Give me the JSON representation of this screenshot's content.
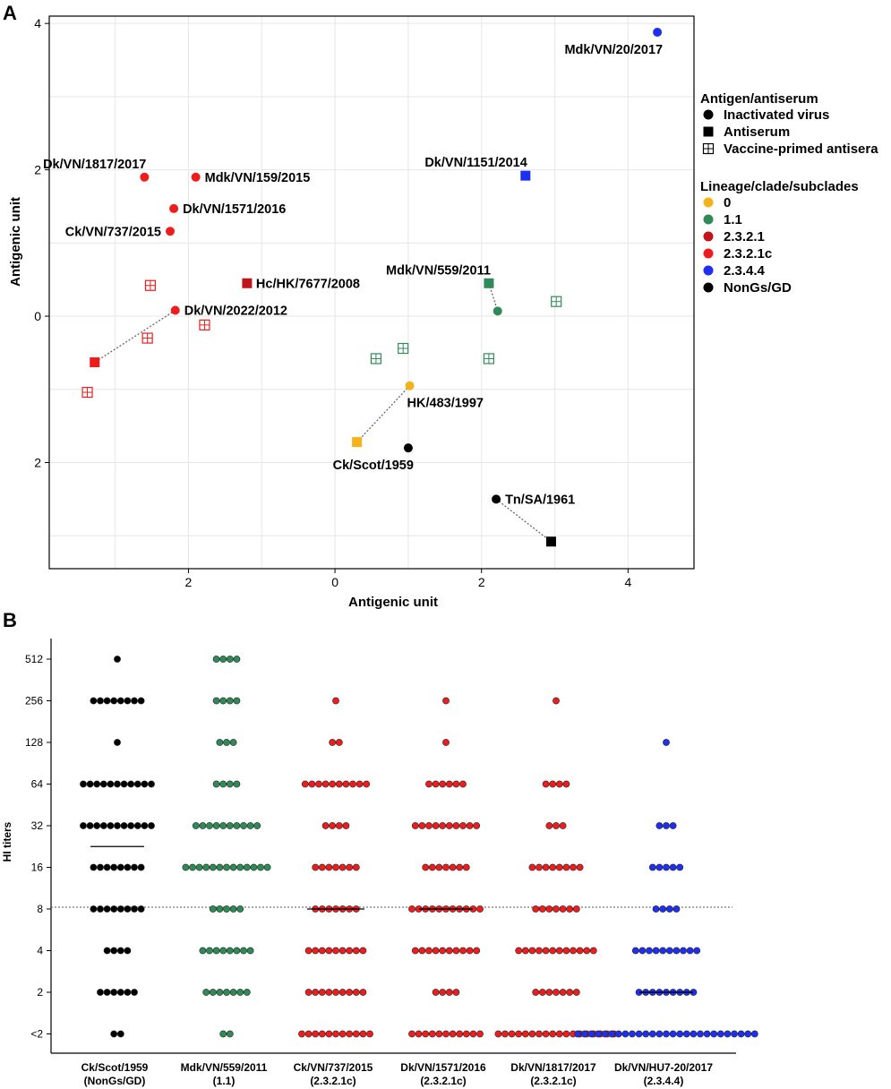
{
  "colors": {
    "clade_0": "#f5b21a",
    "clade_1_1": "#2e8b57",
    "clade_2_3_2_1": "#c0151a",
    "clade_2_3_2_1c": "#ee1c1c",
    "clade_2_3_4_4": "#1d2ff0",
    "nongs": "#000000",
    "grid": "#e6e6e6"
  },
  "chart_data": [
    {
      "panel": "A",
      "type": "scatter",
      "xlabel": "Antigenic unit",
      "ylabel": "Antigenic unit",
      "xlim": [
        -3.9,
        4.9
      ],
      "ylim": [
        -3.45,
        4.1
      ],
      "xticks": [
        -2,
        0,
        2,
        4
      ],
      "xtick_labels": [
        "2",
        "0",
        "2",
        "4"
      ],
      "yticks": [
        4,
        2,
        0,
        -2
      ],
      "ytick_labels": [
        "4",
        "2",
        "0",
        "2"
      ],
      "grid": true,
      "legend": {
        "placement": "right",
        "shape_title": "Antigen/antiserum",
        "shape_items": [
          {
            "label": "Inactivated virus",
            "shape": "circle"
          },
          {
            "label": "Antiserum",
            "shape": "square"
          },
          {
            "label": "Vaccine-primed antisera",
            "shape": "gridsquare"
          }
        ],
        "clade_title": "Lineage/clade/subclades",
        "clade_items": [
          {
            "label": "0",
            "color": "clade_0"
          },
          {
            "label": "1.1",
            "color": "clade_1_1"
          },
          {
            "label": "2.3.2.1",
            "color": "clade_2_3_2_1"
          },
          {
            "label": "2.3.2.1c",
            "color": "clade_2_3_2_1c"
          },
          {
            "label": "2.3.4.4",
            "color": "clade_2_3_4_4"
          },
          {
            "label": "NonGs/GD",
            "color": "nongs"
          }
        ]
      },
      "points": [
        {
          "id": "mdk-vn-20-2017",
          "label": "Mdk/VN/20/2017",
          "x": 4.4,
          "y": 3.88,
          "shape": "circle",
          "color": "clade_2_3_4_4",
          "label_pos": "below-left"
        },
        {
          "id": "dk-vn-1151-2014",
          "label": "Dk/VN/1151/2014",
          "x": 2.6,
          "y": 1.92,
          "shape": "square",
          "color": "clade_2_3_4_4",
          "label_pos": "above-left"
        },
        {
          "id": "dk-vn-1817-2017",
          "label": "Dk/VN/1817/2017",
          "x": -2.6,
          "y": 1.9,
          "shape": "circle",
          "color": "clade_2_3_2_1c",
          "label_pos": "above-left"
        },
        {
          "id": "mdk-vn-159-2015",
          "label": "Mdk/VN/159/2015",
          "x": -1.9,
          "y": 1.9,
          "shape": "circle",
          "color": "clade_2_3_2_1c",
          "label_pos": "right"
        },
        {
          "id": "dk-vn-1571-2016",
          "label": "Dk/VN/1571/2016",
          "x": -2.2,
          "y": 1.47,
          "shape": "circle",
          "color": "clade_2_3_2_1c",
          "label_pos": "right"
        },
        {
          "id": "ck-vn-737-2015",
          "label": "Ck/VN/737/2015",
          "x": -2.25,
          "y": 1.16,
          "shape": "circle",
          "color": "clade_2_3_2_1c",
          "label_pos": "left"
        },
        {
          "id": "hc-hk-7677-2008",
          "label": "Hc/HK/7677/2008",
          "x": -1.2,
          "y": 0.45,
          "shape": "square",
          "color": "clade_2_3_2_1",
          "label_pos": "right"
        },
        {
          "id": "dk-vn-2022-2012",
          "label": "Dk/VN/2022/2012",
          "x": -2.18,
          "y": 0.08,
          "shape": "circle",
          "color": "clade_2_3_2_1c",
          "label_pos": "right"
        },
        {
          "id": "mdk-vn-559-2011",
          "label": "Mdk/VN/559/2011",
          "x": 2.1,
          "y": 0.45,
          "shape": "square",
          "color": "clade_1_1",
          "label_pos": "above-left"
        },
        {
          "id": "hk-483-1997",
          "label": "HK/483/1997",
          "x": 1.02,
          "y": -0.95,
          "shape": "circle",
          "color": "clade_0",
          "label_pos": "below-right"
        },
        {
          "id": "ck-scot-1959",
          "label": "Ck/Scot/1959",
          "x": 1.0,
          "y": -1.8,
          "shape": "circle",
          "color": "nongs",
          "label_pos": "below-left"
        },
        {
          "id": "tn-sa-1961",
          "label": "Tn/SA/1961",
          "x": 2.2,
          "y": -2.5,
          "shape": "circle",
          "color": "nongs",
          "label_pos": "right"
        },
        {
          "id": "p-ck-vn-737-sera",
          "label": "",
          "x": -3.28,
          "y": -0.63,
          "shape": "square",
          "color": "clade_2_3_2_1c"
        },
        {
          "id": "p-clade11-virus",
          "label": "",
          "x": 2.22,
          "y": 0.07,
          "shape": "circle",
          "color": "clade_1_1"
        },
        {
          "id": "p-clade0-sera",
          "label": "",
          "x": 0.3,
          "y": -1.72,
          "shape": "square",
          "color": "clade_0"
        },
        {
          "id": "p-nongs-sera",
          "label": "",
          "x": 2.95,
          "y": -3.08,
          "shape": "square",
          "color": "nongs"
        },
        {
          "id": "v1",
          "label": "",
          "x": -2.52,
          "y": 0.42,
          "shape": "gridsquare",
          "color": "clade_2_3_2_1c"
        },
        {
          "id": "v2",
          "label": "",
          "x": -1.78,
          "y": -0.12,
          "shape": "gridsquare",
          "color": "clade_2_3_2_1c"
        },
        {
          "id": "v3",
          "label": "",
          "x": -2.56,
          "y": -0.3,
          "shape": "gridsquare",
          "color": "clade_2_3_2_1c"
        },
        {
          "id": "v4",
          "label": "",
          "x": -3.38,
          "y": -1.04,
          "shape": "gridsquare",
          "color": "clade_2_3_2_1c"
        },
        {
          "id": "v5",
          "label": "",
          "x": 0.56,
          "y": -0.58,
          "shape": "gridsquare",
          "color": "clade_1_1"
        },
        {
          "id": "v6",
          "label": "",
          "x": 0.93,
          "y": -0.44,
          "shape": "gridsquare",
          "color": "clade_1_1"
        },
        {
          "id": "v7",
          "label": "",
          "x": 2.1,
          "y": -0.58,
          "shape": "gridsquare",
          "color": "clade_1_1"
        },
        {
          "id": "v8",
          "label": "",
          "x": 3.02,
          "y": 0.2,
          "shape": "gridsquare",
          "color": "clade_1_1"
        }
      ],
      "links": [
        {
          "from": "dk-vn-2022-2012",
          "to": "p-ck-vn-737-sera"
        },
        {
          "from": "mdk-vn-559-2011",
          "to": "p-clade11-virus"
        },
        {
          "from": "hk-483-1997",
          "to": "p-clade0-sera"
        },
        {
          "from": "tn-sa-1961",
          "to": "p-nongs-sera"
        }
      ]
    },
    {
      "panel": "B",
      "type": "scatter",
      "ylabel": "HI titers",
      "ytick_labels": [
        "512",
        "256",
        "128",
        "64",
        "32",
        "16",
        "8",
        "4",
        "2",
        "<2"
      ],
      "threshold_label": "8",
      "groups": [
        {
          "name": "Ck/Scot/1959",
          "clade": "(NonGs/GD)",
          "color": "nongs",
          "counts": [
            1,
            8,
            1,
            11,
            11,
            8,
            8,
            4,
            6,
            2
          ],
          "median": 4.5,
          "median_width": 30
        },
        {
          "name": "Mdk/VN/559/2011",
          "clade": "(1.1)",
          "color": "clade_1_1",
          "counts": [
            4,
            4,
            3,
            4,
            10,
            13,
            5,
            8,
            7,
            2
          ],
          "median": null,
          "median_width": 0
        },
        {
          "name": "Ck/VN/737/2015",
          "clade": "(2.3.2.1c)",
          "color": "clade_2_3_2_1c",
          "counts": [
            0,
            1,
            2,
            10,
            4,
            7,
            7,
            9,
            9,
            11
          ],
          "median": 6,
          "median_width": 32
        },
        {
          "name": "Dk/VN/1571/2016",
          "clade": "(2.3.2.1c)",
          "color": "clade_2_3_2_1c",
          "counts": [
            0,
            1,
            1,
            6,
            10,
            7,
            11,
            10,
            4,
            11
          ],
          "median": 6,
          "median_width": 30
        },
        {
          "name": "Dk/VN/1817/2017",
          "clade": "(2.3.2.1c)",
          "color": "clade_2_3_2_1c",
          "counts": [
            0,
            1,
            0,
            4,
            3,
            8,
            7,
            12,
            7,
            18
          ],
          "median": null,
          "median_width": 0
        },
        {
          "name": "Dk/VN/HU7-20/2017",
          "clade": "(2.3.4.4)",
          "color": "clade_2_3_4_4",
          "counts": [
            0,
            0,
            1,
            0,
            3,
            5,
            4,
            10,
            9,
            27
          ],
          "median": 8,
          "median_width": 30
        }
      ]
    }
  ]
}
